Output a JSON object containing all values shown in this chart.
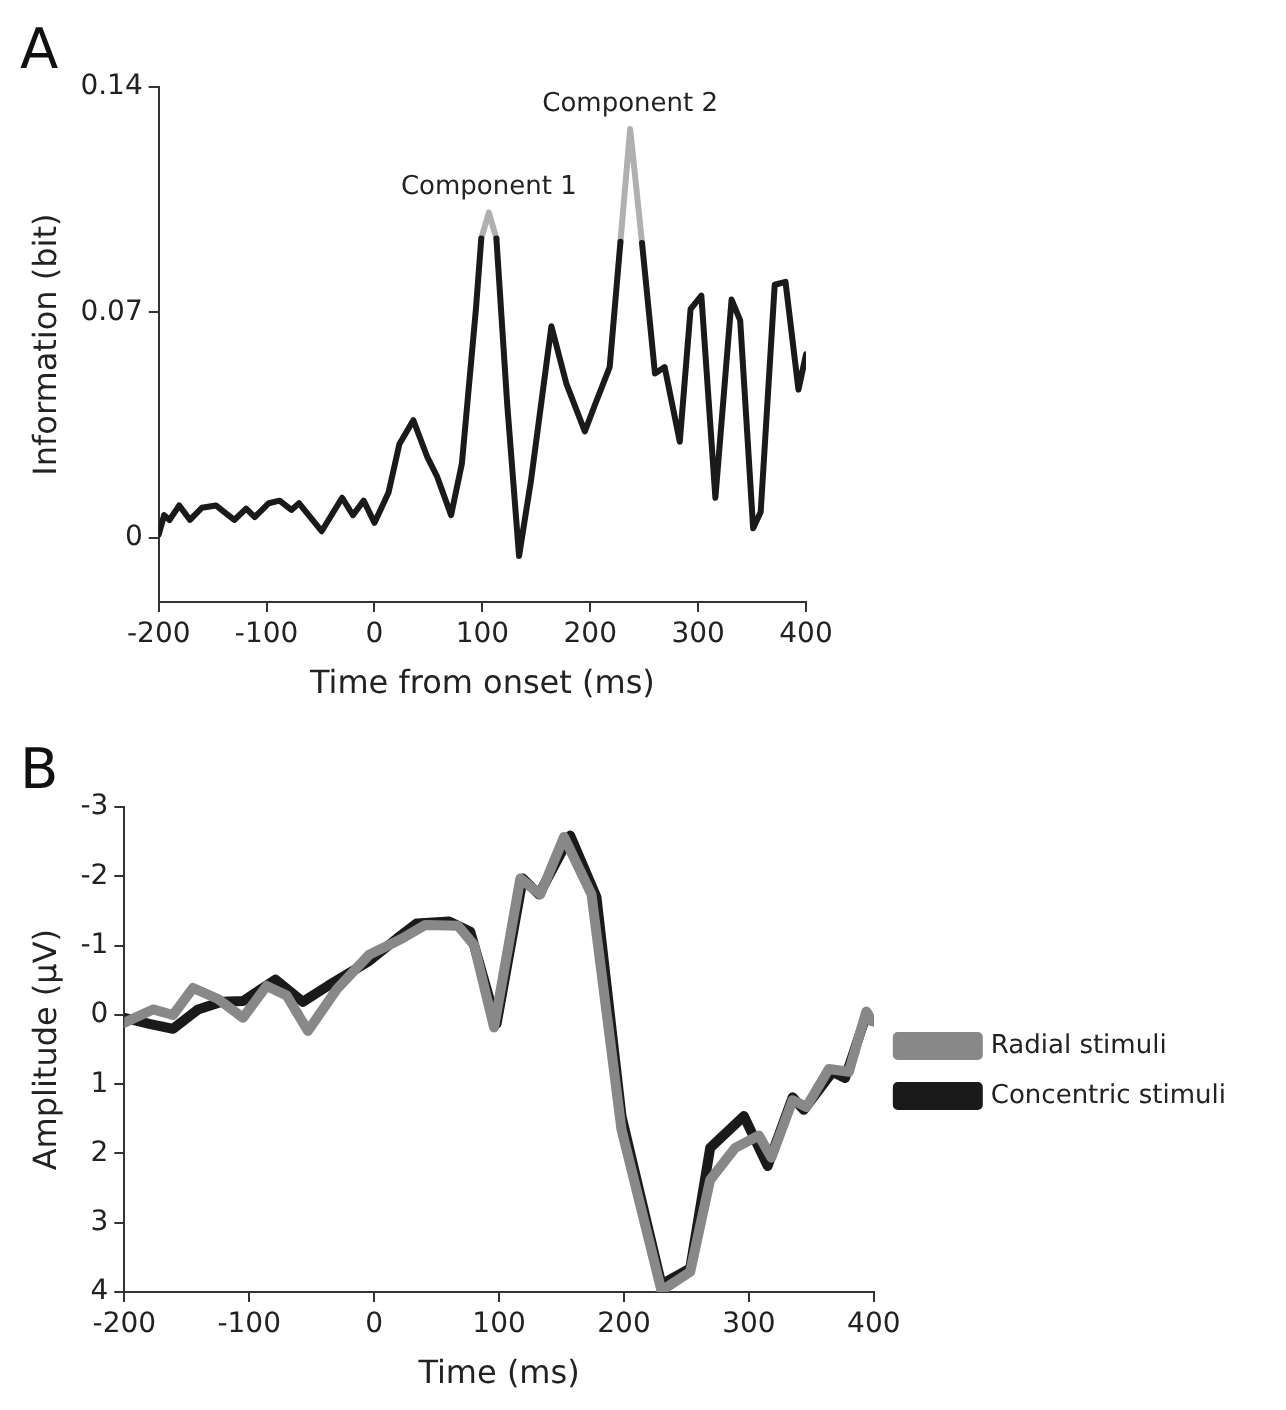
{
  "chart_data": [
    {
      "type": "line",
      "title": "A",
      "xlabel": "Time from onset (ms)",
      "ylabel": "Information (bit)",
      "xlim": [
        -200,
        400
      ],
      "ylim": [
        -0.02,
        0.14
      ],
      "xticks": [
        -200,
        -100,
        0,
        100,
        200,
        300,
        400
      ],
      "yticks": [
        0,
        0.07,
        0.14
      ],
      "legend": false,
      "annotations": [
        {
          "text": "Component 1",
          "x": 106,
          "y": 0.101
        },
        {
          "text": "Component 2",
          "x": 237,
          "y": 0.127
        }
      ],
      "series": [
        {
          "color": "#1a1a1a",
          "x": [
            -200,
            -195,
            -190,
            -181,
            -171,
            -160,
            -147,
            -130,
            -119,
            -111,
            -98,
            -88,
            -77,
            -70,
            -49,
            -30,
            -20,
            -10,
            0,
            13,
            23,
            36,
            49,
            58,
            71,
            81,
            94,
            99,
            106,
            113,
            123,
            134,
            145,
            164,
            178,
            195,
            204,
            218,
            228,
            237,
            248,
            260,
            269,
            283,
            293,
            303,
            316,
            331,
            339,
            351,
            358,
            371,
            381,
            393,
            400
          ],
          "values": [
            0.001,
            0.007,
            0.0055,
            0.01,
            0.0055,
            0.0093,
            0.01,
            0.0055,
            0.009,
            0.0064,
            0.0107,
            0.0115,
            0.0086,
            0.0107,
            0.002,
            0.0124,
            0.007,
            0.0115,
            0.0046,
            0.014,
            0.029,
            0.0365,
            0.025,
            0.019,
            0.007,
            0.023,
            0.071,
            0.093,
            null,
            0.093,
            0.0416,
            -0.0057,
            0.0176,
            0.0657,
            0.0477,
            0.033,
            0.041,
            0.053,
            0.092,
            null,
            0.0916,
            0.051,
            0.053,
            0.0298,
            0.071,
            0.0752,
            0.0124,
            0.074,
            0.0675,
            0.0029,
            0.008,
            0.0786,
            0.0795,
            0.046,
            0.057
          ]
        },
        {
          "color": "#b0b0b0",
          "x": [
            99,
            106,
            113
          ],
          "values": [
            0.093,
            0.101,
            0.093
          ]
        },
        {
          "color": "#b0b0b0",
          "x": [
            228,
            237,
            248
          ],
          "values": [
            0.092,
            0.127,
            0.0916
          ]
        }
      ]
    },
    {
      "type": "line",
      "title": "B",
      "xlabel": "Time (ms)",
      "ylabel": "Amplitude (μV)",
      "xlim": [
        -200,
        400
      ],
      "ylim": [
        4,
        -3
      ],
      "xticks": [
        -200,
        -100,
        0,
        100,
        200,
        300,
        400
      ],
      "yticks": [
        -3,
        -2,
        -1,
        0,
        1,
        2,
        3,
        4
      ],
      "legend": "right",
      "series": [
        {
          "name": "Radial stimuli",
          "color": "#888888",
          "x": [
            -200,
            -177,
            -161,
            -145,
            -125,
            -105,
            -86,
            -70,
            -53,
            -30,
            -4,
            22,
            41,
            67,
            80,
            96,
            117,
            133,
            152,
            174,
            198,
            230,
            253,
            269,
            289,
            308,
            318,
            335,
            346,
            364,
            380,
            394,
            399
          ],
          "values": [
            0.11,
            -0.08,
            0,
            -0.39,
            -0.23,
            0.04,
            -0.42,
            -0.28,
            0.23,
            -0.37,
            -0.87,
            -1.1,
            -1.3,
            -1.29,
            -1.01,
            0.18,
            -1.97,
            -1.74,
            -2.57,
            -1.74,
            1.65,
            3.98,
            3.71,
            2.38,
            1.92,
            1.74,
            2.06,
            1.23,
            1.33,
            0.78,
            0.82,
            -0.05,
            0.09
          ]
        },
        {
          "name": "Concentric stimuli",
          "color": "#1a1a1a",
          "x": [
            -200,
            -180,
            -161,
            -141,
            -122,
            -105,
            -79,
            -57,
            -37,
            -4,
            18,
            34,
            60,
            77,
            98,
            119,
            132,
            157,
            178,
            198,
            230,
            253,
            269,
            296,
            315,
            335,
            344,
            367,
            377,
            394,
            399
          ],
          "values": [
            0.04,
            0.13,
            0.2,
            -0.08,
            -0.19,
            -0.2,
            -0.51,
            -0.19,
            -0.42,
            -0.78,
            -1.1,
            -1.32,
            -1.35,
            -1.2,
            0.13,
            -1.97,
            -1.74,
            -2.59,
            -1.7,
            1.46,
            3.89,
            3.66,
            1.92,
            1.46,
            2.18,
            1.19,
            1.37,
            0.82,
            0.91,
            0,
            0.09
          ]
        }
      ]
    }
  ]
}
